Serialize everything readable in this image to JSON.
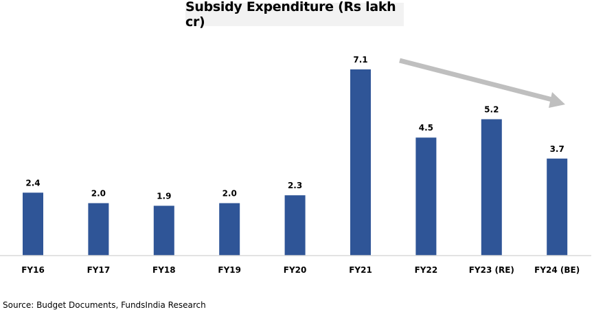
{
  "chart_data": {
    "type": "bar",
    "title": "Subsidy Expenditure (Rs lakh cr)",
    "xlabel": "",
    "ylabel": "",
    "categories": [
      "FY16",
      "FY17",
      "FY18",
      "FY19",
      "FY20",
      "FY21",
      "FY22",
      "FY23 (RE)",
      "FY24 (BE)"
    ],
    "values": [
      2.4,
      2.0,
      1.9,
      2.0,
      2.3,
      7.1,
      4.5,
      5.2,
      3.7
    ],
    "data_labels": [
      "2.4",
      "2.0",
      "1.9",
      "2.0",
      "2.3",
      "7.1",
      "4.5",
      "5.2",
      "3.7"
    ],
    "ylim": [
      0,
      7.5
    ],
    "grid": false,
    "legend": "none",
    "bar_color": "#2f5597",
    "annotation": "downward trend arrow from FY21 to FY24 (BE)",
    "arrow_color": "#bfbfbf"
  },
  "source": "Source: Budget Documents, FundsIndia Research"
}
